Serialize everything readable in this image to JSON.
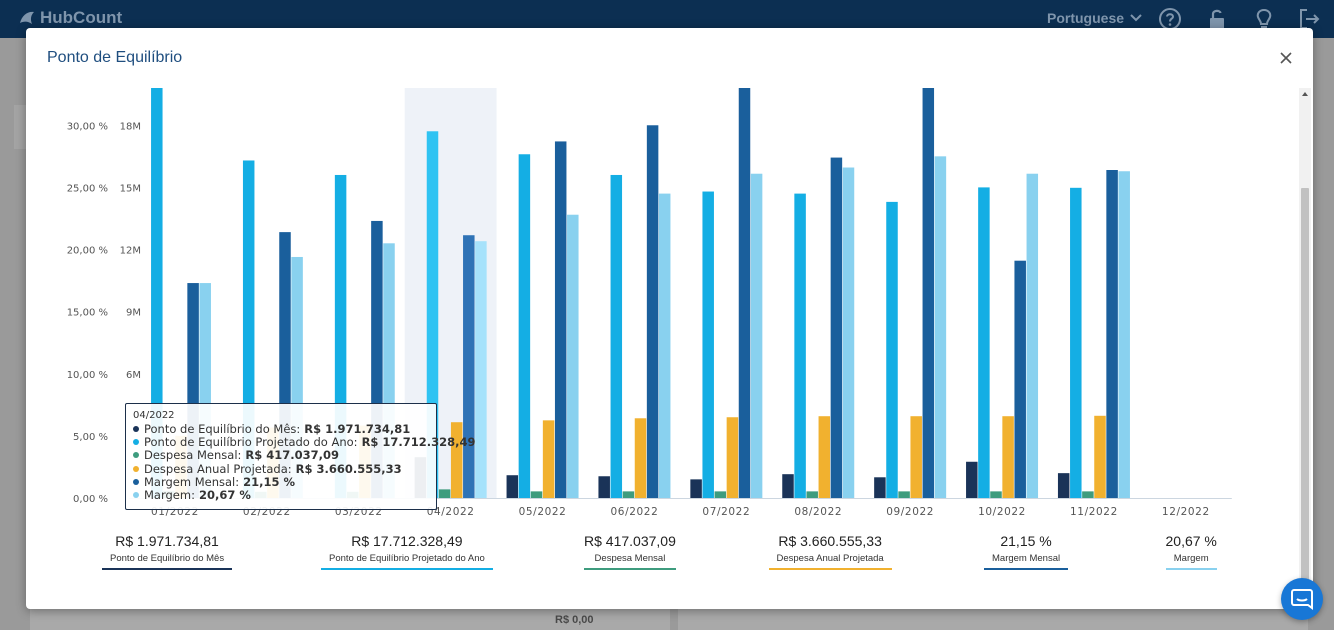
{
  "app": {
    "logo": "HubCount",
    "language": "Portuguese",
    "icons": [
      "help-icon",
      "unlock-icon",
      "lightbulb-icon",
      "logout-icon"
    ],
    "background_value": "R$ 0,00"
  },
  "modal": {
    "title": "Ponto de Equilíbrio",
    "close_icon": "close-icon"
  },
  "chart_data": {
    "type": "bar",
    "categories": [
      "01/2022",
      "02/2022",
      "03/2022",
      "04/2022",
      "05/2022",
      "06/2022",
      "07/2022",
      "08/2022",
      "09/2022",
      "10/2022",
      "11/2022",
      "12/2022"
    ],
    "y_left": {
      "ticks": [
        "0,00 %",
        "5,00 %",
        "10,00 %",
        "15,00 %",
        "20,00 %",
        "25,00 %",
        "30,00 %"
      ],
      "ylim": [
        0,
        33
      ]
    },
    "y_right": {
      "ticks": [
        "6M",
        "9M",
        "12M",
        "15M",
        "18M"
      ],
      "ylim": [
        0,
        19.8
      ]
    },
    "highlight_category": "04/2022",
    "series": [
      {
        "name": "Ponto de Equilíbrio do Mês",
        "axis": "right",
        "color": "#1a3358",
        "values": [
          null,
          null,
          null,
          1.97,
          1.1,
          1.05,
          0.9,
          1.15,
          1.0,
          1.75,
          1.2,
          null
        ]
      },
      {
        "name": "Ponto de Equilíbrio Projetado do Ano",
        "axis": "right",
        "color": "#14aee4",
        "highlight_color": "#2fc3f2",
        "values": [
          19.8,
          16.3,
          15.6,
          17.71,
          16.6,
          15.6,
          14.8,
          14.7,
          14.3,
          15.0,
          14.98,
          null
        ]
      },
      {
        "name": "Despesa Mensal",
        "axis": "right",
        "color": "#3e9c7e",
        "values": [
          0.35,
          0.3,
          0.3,
          0.417,
          0.32,
          0.32,
          0.32,
          0.32,
          0.32,
          0.32,
          0.32,
          null
        ]
      },
      {
        "name": "Despesa Anual Projetada",
        "axis": "right",
        "color": "#f1b12f",
        "values": [
          3.0,
          3.4,
          3.5,
          3.66,
          3.75,
          3.85,
          3.9,
          3.95,
          3.95,
          3.95,
          3.97,
          null
        ]
      },
      {
        "name": "Margem Mensal",
        "axis": "left",
        "color": "#1a5f9c",
        "highlight_color": "#2f73b6",
        "values": [
          17.3,
          21.4,
          22.3,
          21.15,
          28.7,
          30.0,
          33.0,
          27.4,
          33.0,
          19.1,
          26.4,
          null
        ]
      },
      {
        "name": "Margem",
        "axis": "left",
        "color": "#89d1ef",
        "highlight_color": "#a6e2fb",
        "values": [
          17.3,
          19.4,
          20.5,
          20.67,
          22.8,
          24.5,
          26.1,
          26.6,
          27.5,
          26.1,
          26.3,
          null
        ]
      }
    ],
    "grid": false,
    "legend": "none"
  },
  "tooltip": {
    "date": "04/2022",
    "rows": [
      {
        "label": "Ponto de Equilíbrio do Mês:",
        "value": "R$ 1.971.734,81",
        "color": "#1a3358"
      },
      {
        "label": "Ponto de Equilíbrio Projetado do Ano:",
        "value": "R$ 17.712.328,49",
        "color": "#14aee4"
      },
      {
        "label": "Despesa Mensal:",
        "value": "R$ 417.037,09",
        "color": "#3e9c7e"
      },
      {
        "label": "Despesa Anual Projetada:",
        "value": "R$ 3.660.555,33",
        "color": "#f1b12f"
      },
      {
        "label": "Margem Mensal:",
        "value": "21,15 %",
        "color": "#1a5f9c"
      },
      {
        "label": "Margem:",
        "value": "20,67 %",
        "color": "#89d1ef"
      }
    ]
  },
  "summary": [
    {
      "value": "R$ 1.971.734,81",
      "label": "Ponto de Equilíbrio do Mês",
      "color": "#1a3358"
    },
    {
      "value": "R$ 17.712.328,49",
      "label": "Ponto de Equilíbrio Projetado do Ano",
      "color": "#14aee4"
    },
    {
      "value": "R$ 417.037,09",
      "label": "Despesa Mensal",
      "color": "#3e9c7e"
    },
    {
      "value": "R$ 3.660.555,33",
      "label": "Despesa Anual Projetada",
      "color": "#f1b12f"
    },
    {
      "value": "21,15 %",
      "label": "Margem Mensal",
      "color": "#1a5f9c"
    },
    {
      "value": "20,67 %",
      "label": "Margem",
      "color": "#89d1ef"
    }
  ],
  "chat_icon": "chat-icon"
}
